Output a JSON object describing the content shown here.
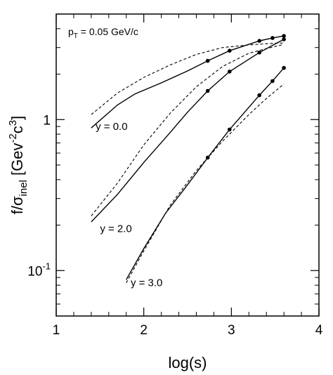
{
  "chart_data": {
    "type": "line",
    "title": "",
    "annotation_main": "p",
    "annotation_sub": "T",
    "annotation_rest": " = 0.05 GeV/c",
    "xlabel": "log(s)",
    "ylabel_prefix": "f/σ",
    "ylabel_sub": "inel",
    "ylabel_mid": " [Gev",
    "ylabel_sup1": "-2",
    "ylabel_c": "c",
    "ylabel_sup2": "3",
    "ylabel_suffix": "]",
    "xlim": [
      1,
      4
    ],
    "ylim": [
      0.05,
      5
    ],
    "yscale": "log",
    "grid": false,
    "x_ticks": [
      {
        "value": 1,
        "label": "1"
      },
      {
        "value": 2,
        "label": "2"
      },
      {
        "value": 3,
        "label": "3"
      },
      {
        "value": 4,
        "label": "4"
      }
    ],
    "y_ticks": [
      {
        "value": 0.1,
        "base": "10",
        "exp": "-1"
      },
      {
        "value": 1,
        "base": "1",
        "exp": ""
      }
    ],
    "series": [
      {
        "label": "y = 0.0",
        "label_at": [
          1.45,
          0.9
        ],
        "solid": [
          [
            1.4,
            0.88
          ],
          [
            1.7,
            1.25
          ],
          [
            1.9,
            1.48
          ],
          [
            2.2,
            1.75
          ],
          [
            2.5,
            2.1
          ],
          [
            2.73,
            2.45
          ],
          [
            2.98,
            2.86
          ],
          [
            3.32,
            3.32
          ],
          [
            3.47,
            3.47
          ],
          [
            3.6,
            3.58
          ]
        ],
        "points": [
          [
            2.73,
            2.45
          ],
          [
            2.98,
            2.86
          ],
          [
            3.32,
            3.32
          ],
          [
            3.47,
            3.47
          ],
          [
            3.6,
            3.58
          ]
        ],
        "dashed": [
          [
            1.4,
            1.08
          ],
          [
            1.7,
            1.5
          ],
          [
            2.0,
            1.9
          ],
          [
            2.3,
            2.3
          ],
          [
            2.6,
            2.7
          ],
          [
            2.9,
            3.0
          ],
          [
            3.2,
            3.12
          ],
          [
            3.4,
            3.18
          ],
          [
            3.6,
            3.22
          ]
        ]
      },
      {
        "label": "y = 2.0",
        "label_at": [
          1.5,
          0.19
        ],
        "solid": [
          [
            1.4,
            0.21
          ],
          [
            1.7,
            0.32
          ],
          [
            2.0,
            0.52
          ],
          [
            2.3,
            0.82
          ],
          [
            2.5,
            1.12
          ],
          [
            2.73,
            1.55
          ],
          [
            2.98,
            2.08
          ],
          [
            3.32,
            2.78
          ],
          [
            3.47,
            3.1
          ],
          [
            3.6,
            3.4
          ]
        ],
        "points": [
          [
            2.73,
            1.55
          ],
          [
            2.98,
            2.08
          ],
          [
            3.32,
            2.78
          ],
          [
            3.6,
            3.4
          ]
        ],
        "dashed": [
          [
            1.4,
            0.23
          ],
          [
            1.7,
            0.38
          ],
          [
            2.0,
            0.68
          ],
          [
            2.3,
            1.1
          ],
          [
            2.6,
            1.65
          ],
          [
            2.9,
            2.25
          ],
          [
            3.2,
            2.75
          ],
          [
            3.4,
            2.95
          ],
          [
            3.6,
            3.15
          ]
        ]
      },
      {
        "label": "y = 3.0",
        "label_at": [
          1.85,
          0.083
        ],
        "solid": [
          [
            1.8,
            0.087
          ],
          [
            2.0,
            0.14
          ],
          [
            2.25,
            0.24
          ],
          [
            2.5,
            0.37
          ],
          [
            2.73,
            0.56
          ],
          [
            2.98,
            0.86
          ],
          [
            3.32,
            1.45
          ],
          [
            3.47,
            1.8
          ],
          [
            3.6,
            2.2
          ]
        ],
        "points": [
          [
            2.73,
            0.56
          ],
          [
            2.98,
            0.86
          ],
          [
            3.32,
            1.45
          ],
          [
            3.47,
            1.8
          ],
          [
            3.6,
            2.2
          ]
        ],
        "dashed": [
          [
            1.8,
            0.083
          ],
          [
            2.0,
            0.135
          ],
          [
            2.3,
            0.27
          ],
          [
            2.6,
            0.46
          ],
          [
            2.9,
            0.72
          ],
          [
            3.2,
            1.08
          ],
          [
            3.4,
            1.38
          ],
          [
            3.6,
            1.72
          ]
        ]
      }
    ]
  }
}
